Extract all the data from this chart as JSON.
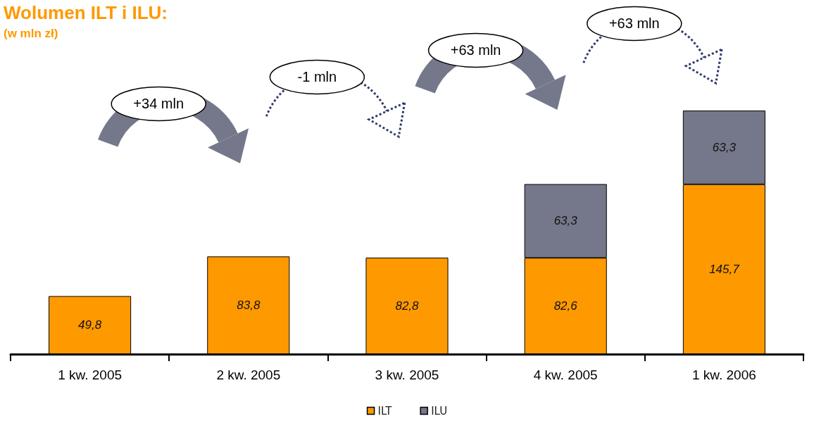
{
  "chart_data": {
    "type": "bar",
    "title": "Wolumen ILT i ILU:",
    "subtitle": "(w mln zł)",
    "categories": [
      "1 kw. 2005",
      "2 kw. 2005",
      "3 kw. 2005",
      "4 kw. 2005",
      "1 kw. 2006"
    ],
    "stacked": true,
    "legend": "bottom",
    "series": [
      {
        "name": "ILT",
        "color": "#ff9900",
        "values": [
          49.8,
          83.8,
          82.8,
          82.6,
          145.7
        ],
        "value_labels": [
          "49,8",
          "83,8",
          "82,8",
          "82,6",
          "145,7"
        ]
      },
      {
        "name": "ILU",
        "color": "#75788a",
        "values": [
          null,
          null,
          null,
          63.3,
          63.3
        ],
        "value_labels": [
          null,
          null,
          null,
          "63,3",
          "63,3"
        ]
      }
    ],
    "annotations": [
      "+34 mln",
      "-1 mln",
      "+63 mln",
      "+63 mln"
    ]
  }
}
